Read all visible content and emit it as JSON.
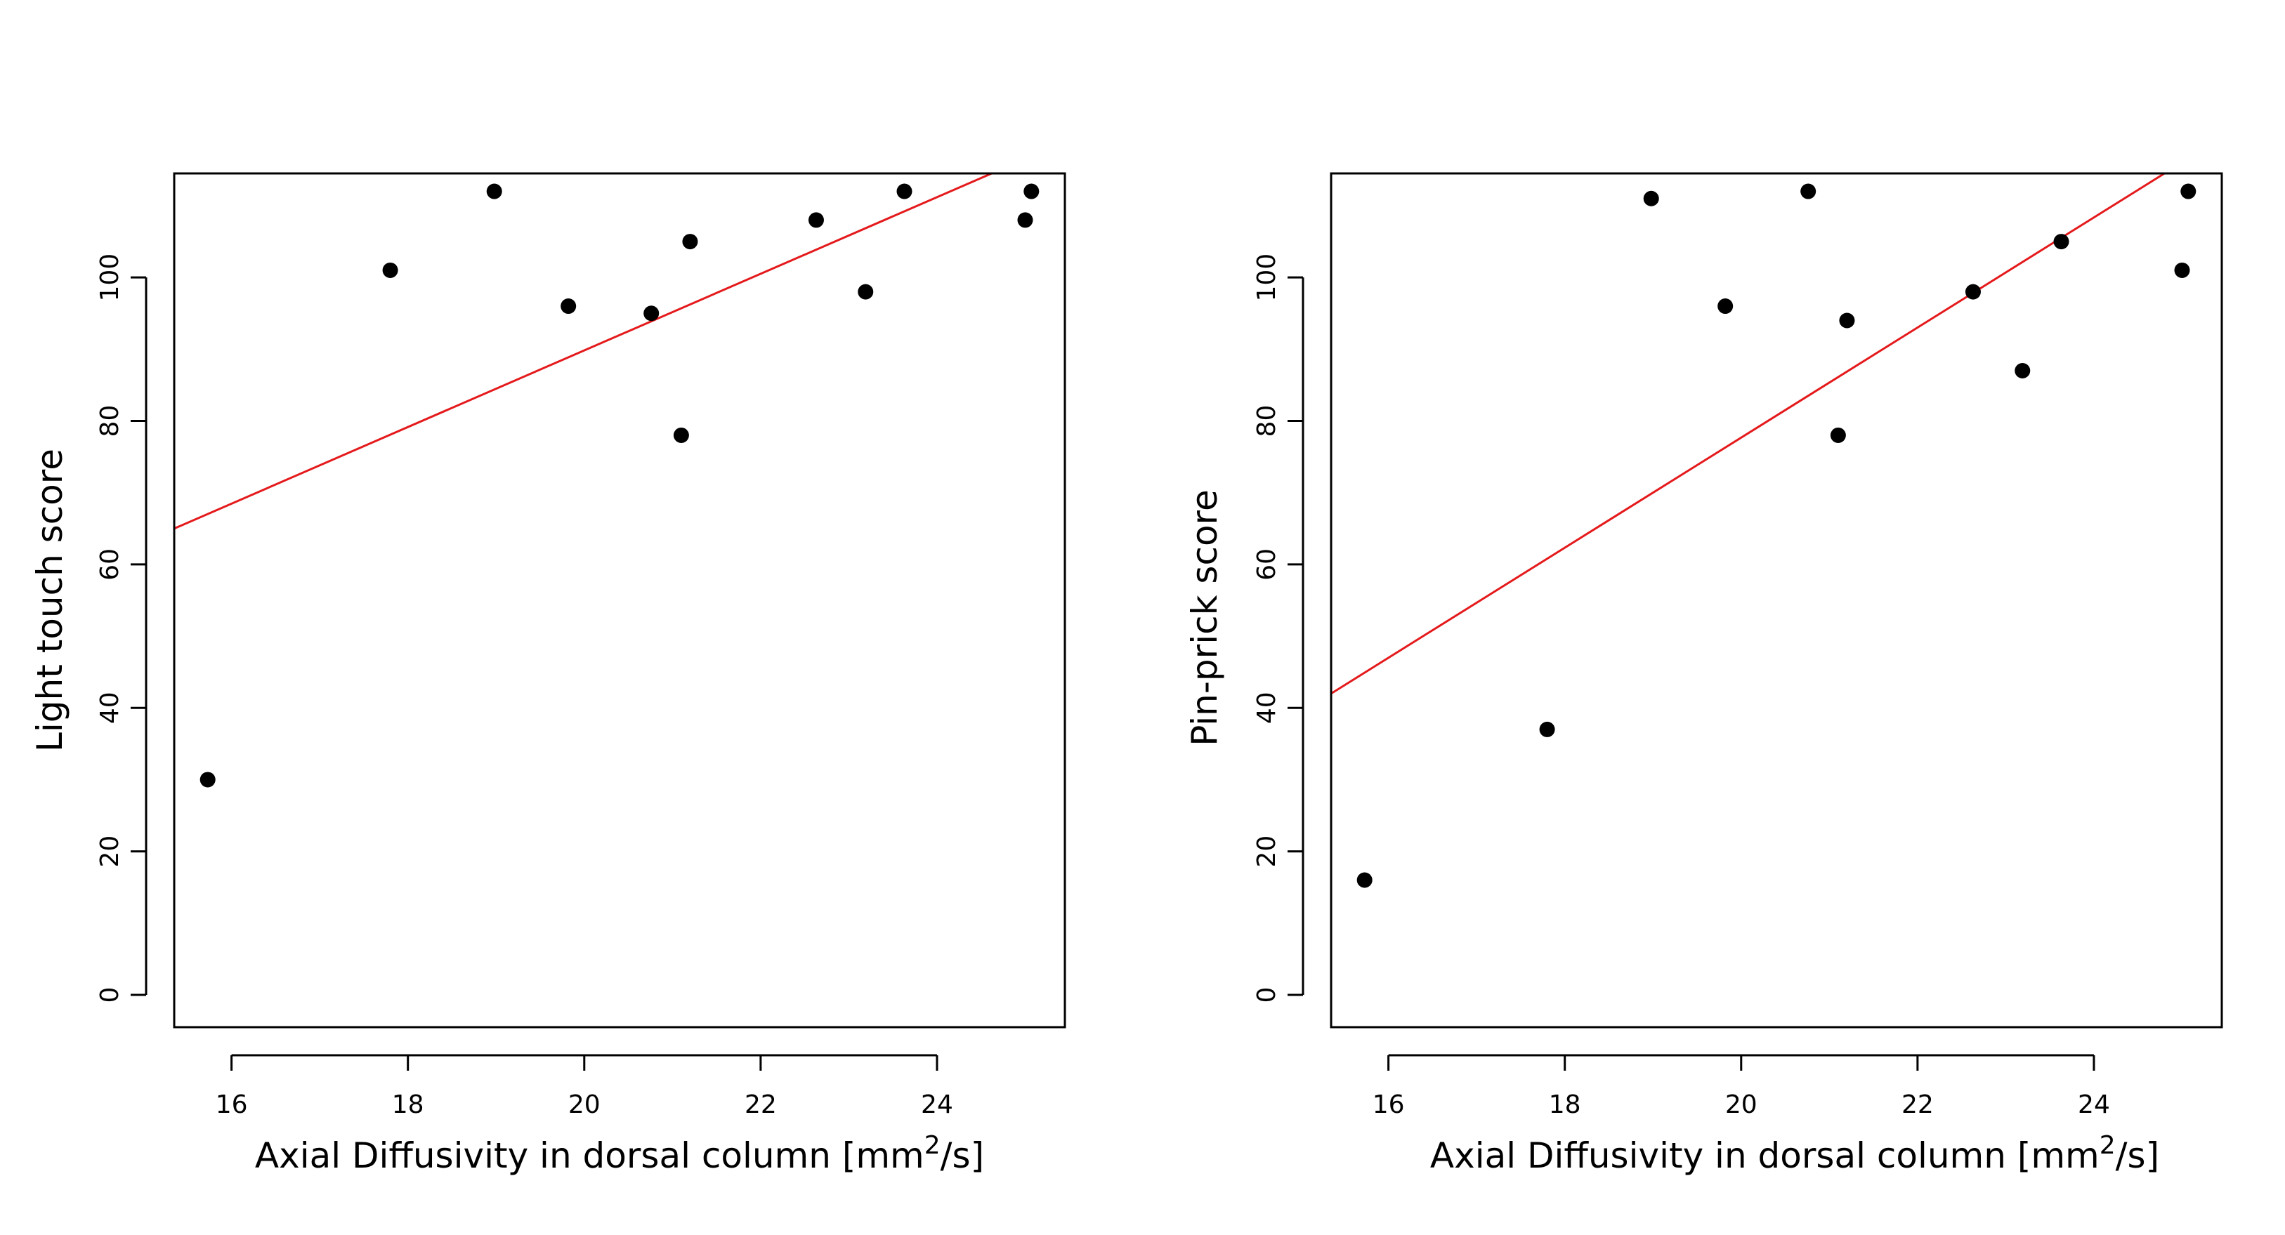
{
  "colors": {
    "points": "#000000",
    "fit_line": "#e41a1c",
    "axes": "#000000",
    "background": "#ffffff"
  },
  "chart_data": [
    {
      "type": "scatter",
      "title": "",
      "xlabel": "Axial Diffusivity in dorsal column [mm2/s]",
      "xlabel_parts": {
        "before": "Axial Diffusivity in dorsal column [mm",
        "superscript": "2",
        "after": "/s]"
      },
      "ylabel": "Light touch score",
      "xlim": [
        15.35,
        25.45
      ],
      "ylim": [
        -4.5,
        114.5
      ],
      "x_ticks": [
        16,
        18,
        20,
        22,
        24
      ],
      "x_tick_labels": [
        "16",
        "18",
        "20",
        "22",
        "24"
      ],
      "y_ticks": [
        0,
        20,
        40,
        60,
        80,
        100
      ],
      "y_tick_labels": [
        "0",
        "20",
        "40",
        "60",
        "80",
        "100"
      ],
      "points": {
        "x": [
          15.73,
          17.8,
          18.98,
          19.82,
          20.76,
          21.1,
          21.2,
          22.63,
          23.19,
          23.63,
          25.0,
          25.07
        ],
        "y": [
          30,
          101,
          112,
          96,
          95,
          78,
          105,
          108,
          98,
          112,
          108,
          112
        ]
      },
      "fit_line": {
        "x": [
          15.35,
          24.62
        ],
        "y": [
          65,
          114.5
        ]
      }
    },
    {
      "type": "scatter",
      "title": "",
      "xlabel": "Axial Diffusivity in dorsal column [mm2/s]",
      "xlabel_parts": {
        "before": "Axial Diffusivity in dorsal column [mm",
        "superscript": "2",
        "after": "/s]"
      },
      "ylabel": "Pin-prick score",
      "xlim": [
        15.35,
        25.45
      ],
      "ylim": [
        -4.5,
        114.5
      ],
      "x_ticks": [
        16,
        18,
        20,
        22,
        24
      ],
      "x_tick_labels": [
        "16",
        "18",
        "20",
        "22",
        "24"
      ],
      "y_ticks": [
        0,
        20,
        40,
        60,
        80,
        100
      ],
      "y_tick_labels": [
        "0",
        "20",
        "40",
        "60",
        "80",
        "100"
      ],
      "points": {
        "x": [
          15.73,
          17.8,
          18.98,
          19.82,
          20.76,
          21.1,
          21.2,
          22.63,
          23.19,
          23.63,
          25.0,
          25.07
        ],
        "y": [
          16,
          37,
          111,
          96,
          112,
          78,
          94,
          98,
          87,
          105,
          101,
          112
        ]
      },
      "fit_line": {
        "x": [
          15.35,
          24.8
        ],
        "y": [
          42,
          114.5
        ]
      }
    }
  ]
}
